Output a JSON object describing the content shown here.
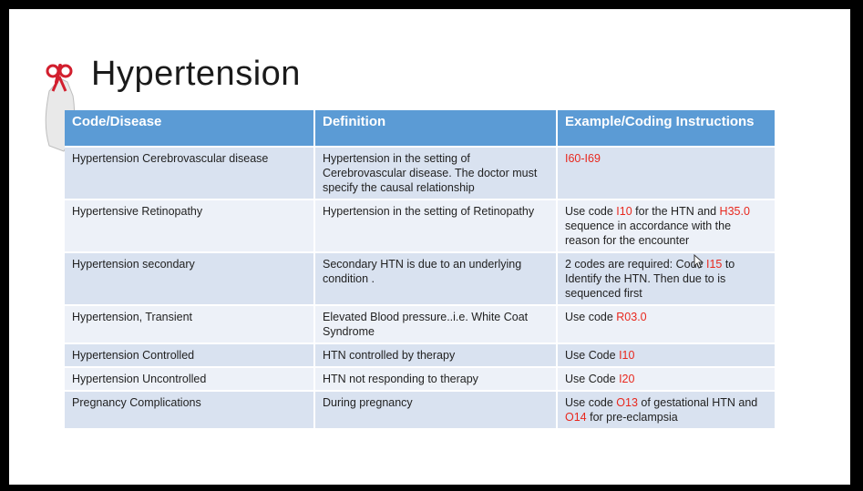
{
  "title": "Hypertension",
  "table": {
    "headers": [
      "Code/Disease",
      "Definition",
      "Example/Coding Instructions"
    ],
    "rows": [
      {
        "disease": "Hypertension Cerebrovascular disease",
        "definition": "Hypertension in the setting of Cerebrovascular disease.  The doctor must specify the causal relationship",
        "ex_pre": "",
        "ex_code1": "I60-I69",
        "ex_mid": "",
        "ex_code2": "",
        "ex_post": ""
      },
      {
        "disease": "Hypertensive Retinopathy",
        "definition": "Hypertension in the setting of Retinopathy",
        "ex_pre": "Use code ",
        "ex_code1": "I10",
        "ex_mid": " for the HTN and ",
        "ex_code2": "H35.0",
        "ex_post": " sequence in accordance with the reason for the encounter"
      },
      {
        "disease": "Hypertension secondary",
        "definition": "Secondary HTN is due to an underlying condition .",
        "ex_pre": "2 codes are required:  Code ",
        "ex_code1": "I15",
        "ex_mid": " to Identify the HTN.  Then due to is sequenced first",
        "ex_code2": "",
        "ex_post": ""
      },
      {
        "disease": "Hypertension, Transient",
        "definition": "Elevated Blood pressure..i.e. White Coat Syndrome",
        "ex_pre": "Use code ",
        "ex_code1": "R03.0",
        "ex_mid": "",
        "ex_code2": "",
        "ex_post": ""
      },
      {
        "disease": "Hypertension Controlled",
        "definition": "HTN controlled by therapy",
        "ex_pre": "Use Code ",
        "ex_code1": "I10",
        "ex_mid": "",
        "ex_code2": "",
        "ex_post": ""
      },
      {
        "disease": "Hypertension Uncontrolled",
        "definition": "HTN not responding to therapy",
        "ex_pre": "Use Code ",
        "ex_code1": "I20",
        "ex_mid": "",
        "ex_code2": "",
        "ex_post": ""
      },
      {
        "disease": "Pregnancy Complications",
        "definition": "During pregnancy",
        "ex_pre": "Use code ",
        "ex_code1": "O13",
        "ex_mid": " of gestational HTN and ",
        "ex_code2": "O14",
        "ex_post": " for pre-eclampsia"
      }
    ]
  },
  "colors": {
    "header": "#5b9bd5",
    "odd_row": "#d9e2f0",
    "even_row": "#edf1f8",
    "code": "#e8281e"
  },
  "icons": {
    "bullet": "hand-with-ribbon-icon",
    "cursor": "mouse-cursor-icon"
  }
}
